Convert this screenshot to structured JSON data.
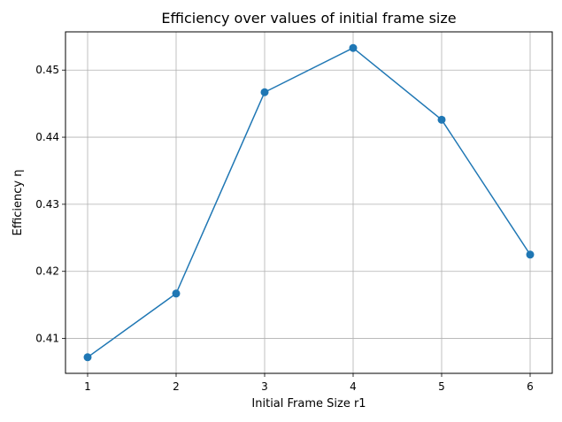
{
  "chart_data": {
    "type": "line",
    "title": "Efficiency over values of initial frame size",
    "xlabel": "Initial Frame Size r1",
    "ylabel": "Efficiency η",
    "x": [
      1,
      2,
      3,
      4,
      5,
      6
    ],
    "series": [
      {
        "values": [
          0.4072,
          0.4167,
          0.4467,
          0.4533,
          0.4426,
          0.4225
        ],
        "color": "#1f77b4",
        "marker": "circle"
      }
    ],
    "xlim": [
      0.75,
      6.25
    ],
    "ylim": [
      0.4048,
      0.4557
    ],
    "xticks": [
      1,
      2,
      3,
      4,
      5,
      6
    ],
    "yticks": [
      0.41,
      0.42,
      0.43,
      0.44,
      0.45
    ],
    "ytick_labels": [
      "0.41",
      "0.42",
      "0.43",
      "0.44",
      "0.45"
    ],
    "grid": true,
    "legend": "none"
  }
}
